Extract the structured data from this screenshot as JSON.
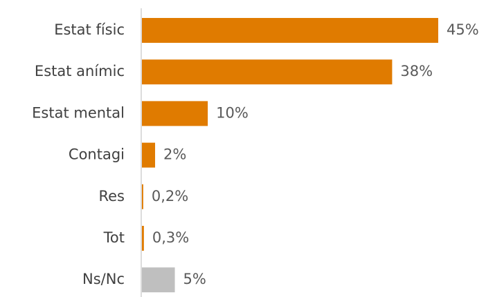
{
  "chart_data": {
    "type": "bar",
    "orientation": "horizontal",
    "categories": [
      "Estat físic",
      "Estat anímic",
      "Estat mental",
      "Contagi",
      "Res",
      "Tot",
      "Ns/Nc"
    ],
    "values": [
      45,
      38,
      10,
      2,
      0.2,
      0.3,
      5
    ],
    "value_labels": [
      "45%",
      "38%",
      "10%",
      "2%",
      "0,2%",
      "0,3%",
      "5%"
    ],
    "colors": [
      "#e07b00",
      "#e07b00",
      "#e07b00",
      "#e07b00",
      "#e07b00",
      "#e07b00",
      "#bfbfbf"
    ]
  }
}
